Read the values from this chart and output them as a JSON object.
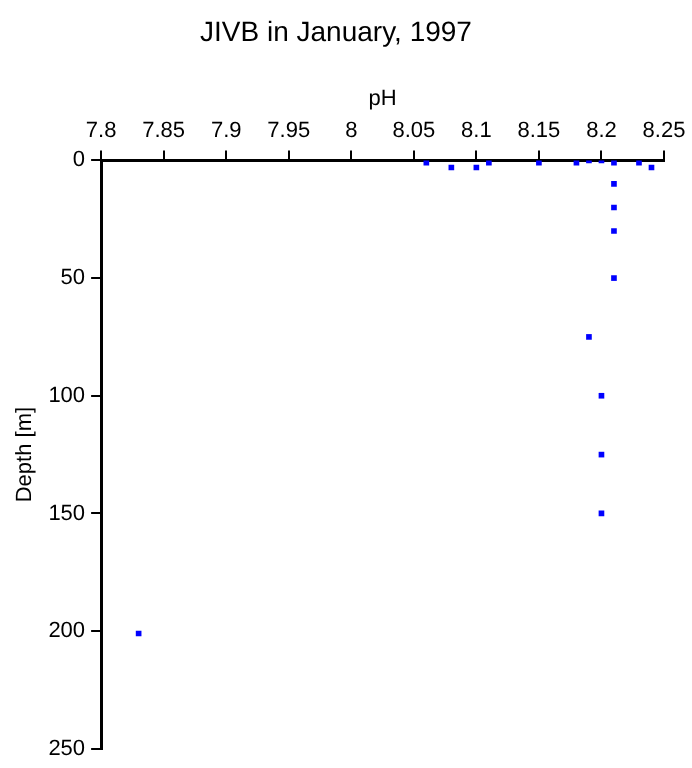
{
  "chart_data": {
    "type": "scatter",
    "title": "JIVB in January, 1997",
    "xlabel": "pH",
    "ylabel": "Depth [m]",
    "x": [
      8.06,
      8.08,
      8.1,
      8.11,
      8.15,
      8.18,
      8.19,
      8.2,
      8.21,
      8.23,
      8.24,
      8.21,
      8.21,
      8.21,
      8.21,
      8.19,
      8.2,
      8.2,
      8.2,
      7.83
    ],
    "series": [
      {
        "color": "#0000ff",
        "values": [
          1,
          3,
          3,
          1,
          1,
          1,
          0,
          0,
          1,
          1,
          3,
          10,
          20,
          30,
          50,
          75,
          100,
          125,
          150,
          201
        ]
      }
    ],
    "xlim": [
      7.8,
      8.25
    ],
    "xticks": [
      7.8,
      7.85,
      7.9,
      7.95,
      {
        "value": 8,
        "label": "8"
      },
      8.05,
      8.1,
      8.15,
      8.2,
      8.25
    ],
    "ylim": [
      250,
      0
    ],
    "yticks": [
      0,
      50,
      100,
      150,
      200,
      250
    ],
    "grid": false,
    "legend": false,
    "marker": "square"
  }
}
